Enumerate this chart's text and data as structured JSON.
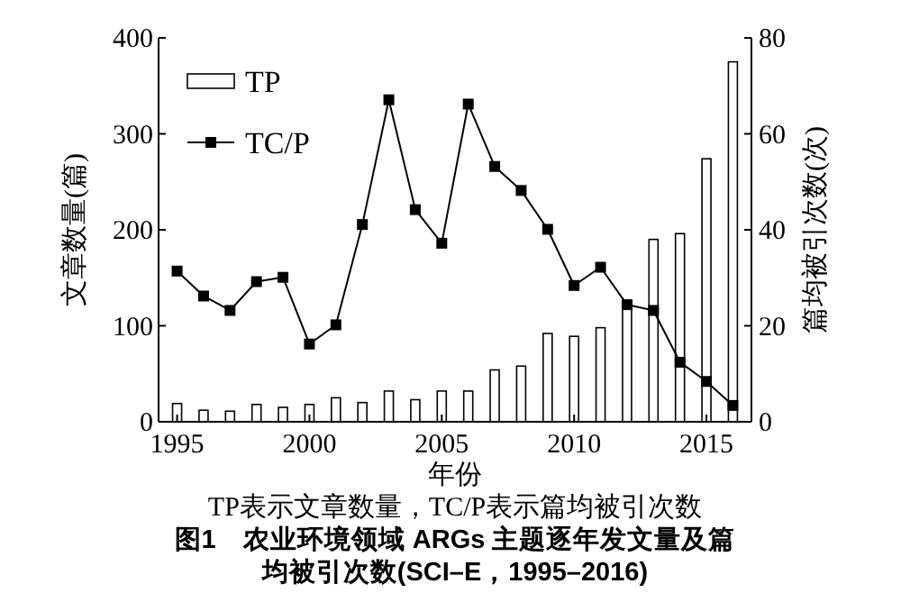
{
  "chart_data": {
    "type": "bar",
    "title": "图1　农业环境领域 ARGs 主题逐年发文量及篇均被引次数(SCI–E，1995–2016)",
    "xlabel": "年份",
    "ylabel": "文章数量(篇)",
    "y2label": "篇均被引次数(次)",
    "annotations": [
      "TP表示文章数量，TC/P表示篇均被引次数"
    ],
    "x": [
      1995,
      1996,
      1997,
      1998,
      1999,
      2000,
      2001,
      2002,
      2003,
      2004,
      2005,
      2006,
      2007,
      2008,
      2009,
      2010,
      2011,
      2012,
      2013,
      2014,
      2015,
      2016
    ],
    "series": [
      {
        "name": "TP",
        "color": "#ffffff",
        "values": [
          19,
          12,
          11,
          18,
          15,
          18,
          25,
          20,
          32,
          23,
          32,
          32,
          54,
          58,
          92,
          89,
          98,
          125,
          190,
          196,
          274,
          375
        ]
      },
      {
        "name": "TC/P",
        "type": "line",
        "axis": "y2",
        "color": "#000000",
        "marker": "square",
        "line_style": "solid",
        "values": [
          31.4,
          26.2,
          23.2,
          29.2,
          30.1,
          16.2,
          20.2,
          41.1,
          67.1,
          44.2,
          37.2,
          66.2,
          53.2,
          48.2,
          40.1,
          28.4,
          32.2,
          24.4,
          23.2,
          12.4,
          8.4,
          3.4
        ]
      }
    ],
    "xlim": [
      1994.3,
      2016.7
    ],
    "xticks": [
      1995,
      2000,
      2005,
      2010,
      2015
    ],
    "ylim": [
      0,
      400
    ],
    "yticks": [
      0,
      100,
      200,
      300,
      400
    ],
    "y2lim": [
      0,
      80
    ],
    "y2ticks": [
      0,
      20,
      40,
      60,
      80
    ],
    "legend": "top left",
    "grid": false
  }
}
